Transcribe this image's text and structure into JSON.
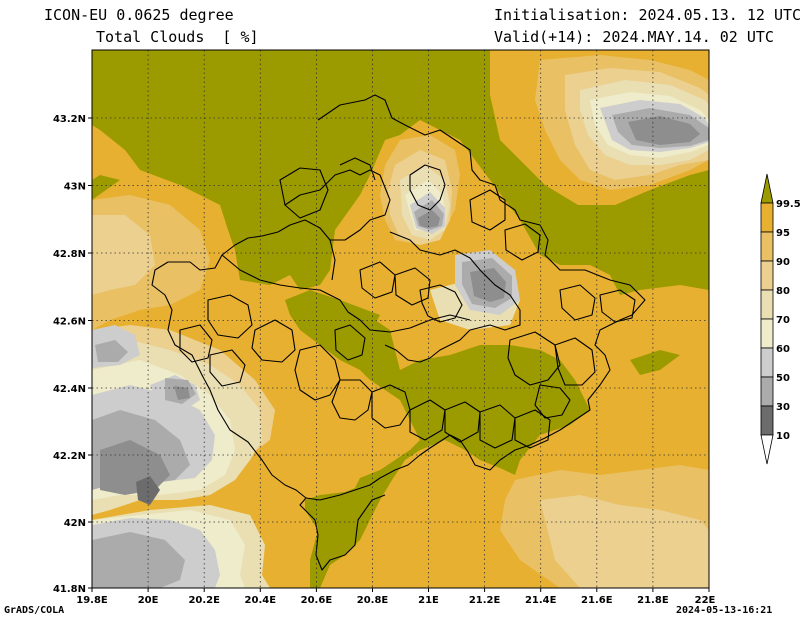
{
  "header": {
    "title_line1": "ICON-EU 0.0625 degree",
    "title_line2": "Total Clouds  [ %]",
    "initialisation": "Initialisation: 2024.05.13. 12 UTC",
    "valid": "Valid(+14): 2024.MAY.14. 02 UTC"
  },
  "footer": {
    "credit": "GrADS/COLA",
    "timestamp": "2024-05-13-16:21"
  },
  "axes": {
    "x_ticks": [
      "19.8E",
      "20E",
      "20.2E",
      "20.4E",
      "20.6E",
      "20.8E",
      "21E",
      "21.2E",
      "21.4E",
      "21.6E",
      "21.8E",
      "22E"
    ],
    "y_ticks": [
      "43.2N",
      "43N",
      "42.8N",
      "42.6N",
      "42.4N",
      "42.2N",
      "42N",
      "41.8N"
    ]
  },
  "legend": {
    "labels": [
      "99.5",
      "95",
      "90",
      "80",
      "70",
      "60",
      "50",
      "30",
      "10"
    ],
    "colors": [
      "#9b9b00",
      "#e8b030",
      "#e9c063",
      "#ebd090",
      "#e9dfb2",
      "#efeccb",
      "#cdcdcd",
      "#ababab",
      "#8e8e8e",
      "#6c6c6c",
      "#ffffff"
    ]
  },
  "palette": {
    "olive": "#9b9b00",
    "orange": "#e8b030",
    "light_orange": "#e9c063",
    "tan": "#ebd090",
    "beige": "#e9dfb2",
    "cream": "#efeccb",
    "light_gray": "#cdcdcd",
    "gray": "#ababab",
    "mid_gray": "#8e8e8e",
    "dark_gray": "#6c6c6c"
  }
}
